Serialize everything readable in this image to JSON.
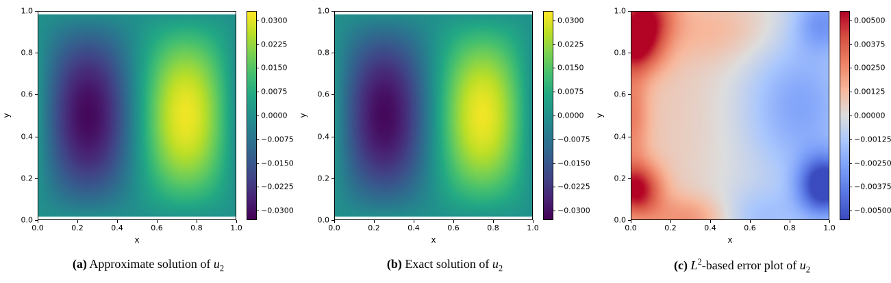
{
  "page": {
    "background": "#ffffff"
  },
  "colormaps": {
    "viridis": [
      "#440154",
      "#482475",
      "#414487",
      "#355f8d",
      "#2a788e",
      "#21918c",
      "#22a884",
      "#44bf70",
      "#7ad151",
      "#bddf26",
      "#fde725"
    ],
    "coolwarm": [
      "#3b4cc0",
      "#5977e3",
      "#7c9ff9",
      "#aac7fd",
      "#dddddd",
      "#f7b89c",
      "#ee8468",
      "#d65244",
      "#b40426"
    ]
  },
  "captions": [
    {
      "label": "(a)",
      "text": "Approximate solution of",
      "u": "u",
      "usub": "2"
    },
    {
      "label": "(b)",
      "text": "Exact solution of",
      "u": "u",
      "usub": "2"
    },
    {
      "label": "(c)",
      "lvar": "L",
      "lsup": "2",
      "text": "-based error plot of",
      "u": "u",
      "usub": "2"
    }
  ],
  "chart_data": [
    {
      "id": "a",
      "type": "heatmap",
      "title": "",
      "xlabel": "x",
      "ylabel": "y",
      "x_range": [
        0,
        1
      ],
      "y_range": [
        0,
        1
      ],
      "x_tick_labels": [
        "0.0",
        "0.2",
        "0.4",
        "0.6",
        "0.8",
        "1.0"
      ],
      "x_tick_values": [
        0,
        0.2,
        0.4,
        0.6,
        0.8,
        1.0
      ],
      "y_tick_labels": [
        "0.0",
        "0.2",
        "0.4",
        "0.6",
        "0.8",
        "1.0"
      ],
      "y_tick_values": [
        0,
        0.2,
        0.4,
        0.6,
        0.8,
        1.0
      ],
      "colormap": "viridis",
      "vmin": -0.033,
      "vmax": 0.033,
      "colorbar_tick_labels": [
        "0.0300",
        "0.0225",
        "0.0150",
        "0.0075",
        "0.0000",
        "−0.0075",
        "−0.0150",
        "−0.0225",
        "−0.0300"
      ],
      "colorbar_tick_values": [
        0.03,
        0.0225,
        0.015,
        0.0075,
        0,
        -0.0075,
        -0.015,
        -0.0225,
        -0.03
      ],
      "value_extent": {
        "min": -0.0315,
        "max": 0.0315
      },
      "extrema": [
        {
          "x": 0.2,
          "y": 0.5,
          "value": -0.0315,
          "description": "dark minimum blob"
        },
        {
          "x": 0.8,
          "y": 0.5,
          "value": 0.0315,
          "description": "bright maximum blob"
        }
      ],
      "model": {
        "kind": "sine_product",
        "amplitude": -0.0315
      },
      "edge_gap": [
        2,
        2
      ],
      "grid": "off",
      "legend": "colorbar-right"
    },
    {
      "id": "b",
      "type": "heatmap",
      "title": "",
      "xlabel": "x",
      "ylabel": "y",
      "x_range": [
        0,
        1
      ],
      "y_range": [
        0,
        1
      ],
      "x_tick_labels": [
        "0.0",
        "0.2",
        "0.4",
        "0.6",
        "0.8",
        "1.0"
      ],
      "x_tick_values": [
        0,
        0.2,
        0.4,
        0.6,
        0.8,
        1.0
      ],
      "y_tick_labels": [
        "0.0",
        "0.2",
        "0.4",
        "0.6",
        "0.8",
        "1.0"
      ],
      "y_tick_values": [
        0,
        0.2,
        0.4,
        0.6,
        0.8,
        1.0
      ],
      "colormap": "viridis",
      "vmin": -0.033,
      "vmax": 0.033,
      "colorbar_tick_labels": [
        "0.0300",
        "0.0225",
        "0.0150",
        "0.0075",
        "0.0000",
        "−0.0075",
        "−0.0150",
        "−0.0225",
        "−0.0300"
      ],
      "colorbar_tick_values": [
        0.03,
        0.0225,
        0.015,
        0.0075,
        0,
        -0.0075,
        -0.015,
        -0.0225,
        -0.03
      ],
      "value_extent": {
        "min": -0.0315,
        "max": 0.0315
      },
      "extrema": [
        {
          "x": 0.2,
          "y": 0.5,
          "value": -0.0315,
          "description": "dark minimum blob"
        },
        {
          "x": 0.8,
          "y": 0.5,
          "value": 0.0315,
          "description": "bright maximum blob"
        }
      ],
      "model": {
        "kind": "sine_product",
        "amplitude": -0.0315
      },
      "edge_gap": [
        2,
        2
      ],
      "grid": "off",
      "legend": "colorbar-right"
    },
    {
      "id": "c",
      "type": "heatmap",
      "title": "",
      "xlabel": "x",
      "ylabel": "y",
      "x_range": [
        0,
        1
      ],
      "y_range": [
        0,
        1
      ],
      "x_tick_labels": [
        "0.0",
        "0.2",
        "0.4",
        "0.6",
        "0.8",
        "1.0"
      ],
      "x_tick_values": [
        0,
        0.2,
        0.4,
        0.6,
        0.8,
        1.0
      ],
      "y_tick_labels": [
        "0.0",
        "0.2",
        "0.4",
        "0.6",
        "0.8",
        "1.0"
      ],
      "y_tick_values": [
        0,
        0.2,
        0.4,
        0.6,
        0.8,
        1.0
      ],
      "colormap": "coolwarm",
      "vmin": -0.0055,
      "vmax": 0.0055,
      "colorbar_tick_labels": [
        "0.00500",
        "0.00375",
        "0.00250",
        "0.00125",
        "0.00000",
        "−0.00125",
        "−0.00250",
        "−0.00375",
        "−0.00500"
      ],
      "colorbar_tick_values": [
        0.005,
        0.00375,
        0.0025,
        0.00125,
        0,
        -0.00125,
        -0.0025,
        -0.00375,
        -0.005
      ],
      "value_extent": {
        "min": -0.0055,
        "max": 0.0052
      },
      "extrema": [
        {
          "x": 0.02,
          "y": 0.85,
          "value": 0.0052,
          "description": "strong red error on left edge"
        },
        {
          "x": 0.02,
          "y": 0.14,
          "value": 0.005,
          "description": "strong red error lower-left edge"
        },
        {
          "x": 0.98,
          "y": 0.16,
          "value": -0.0055,
          "description": "strong blue error lower-right edge"
        }
      ],
      "model": {
        "kind": "gaussian_sum",
        "terms": [
          {
            "cx": 0.02,
            "cy": 0.85,
            "sx": 0.1,
            "sy": 0.1,
            "amp": 0.0052
          },
          {
            "cx": 0.02,
            "cy": 0.14,
            "sx": 0.09,
            "sy": 0.09,
            "amp": 0.005
          },
          {
            "cx": 0.08,
            "cy": 1.0,
            "sx": 0.1,
            "sy": 0.09,
            "amp": 0.0035
          },
          {
            "cx": 0.0,
            "cy": 0.5,
            "sx": 0.06,
            "sy": 0.18,
            "amp": 0.0022
          },
          {
            "cx": 0.3,
            "cy": 0.0,
            "sx": 0.16,
            "sy": 0.08,
            "amp": 0.0022
          },
          {
            "cx": 0.45,
            "cy": 0.92,
            "sx": 0.22,
            "sy": 0.12,
            "amp": 0.0012
          },
          {
            "cx": 0.2,
            "cy": 0.5,
            "sx": 0.35,
            "sy": 0.45,
            "amp": 0.0009
          },
          {
            "cx": 0.98,
            "cy": 0.16,
            "sx": 0.09,
            "sy": 0.1,
            "amp": -0.006
          },
          {
            "cx": 0.97,
            "cy": 0.95,
            "sx": 0.1,
            "sy": 0.1,
            "amp": -0.0025
          },
          {
            "cx": 0.85,
            "cy": 0.55,
            "sx": 0.18,
            "sy": 0.22,
            "amp": -0.0018
          },
          {
            "cx": 0.62,
            "cy": 0.0,
            "sx": 0.18,
            "sy": 0.1,
            "amp": -0.0015
          },
          {
            "cx": 0.8,
            "cy": 0.5,
            "sx": 0.35,
            "sy": 0.45,
            "amp": -0.0009
          }
        ]
      },
      "edge_gap": [
        0,
        0
      ],
      "grid": "off",
      "legend": "colorbar-right"
    }
  ]
}
